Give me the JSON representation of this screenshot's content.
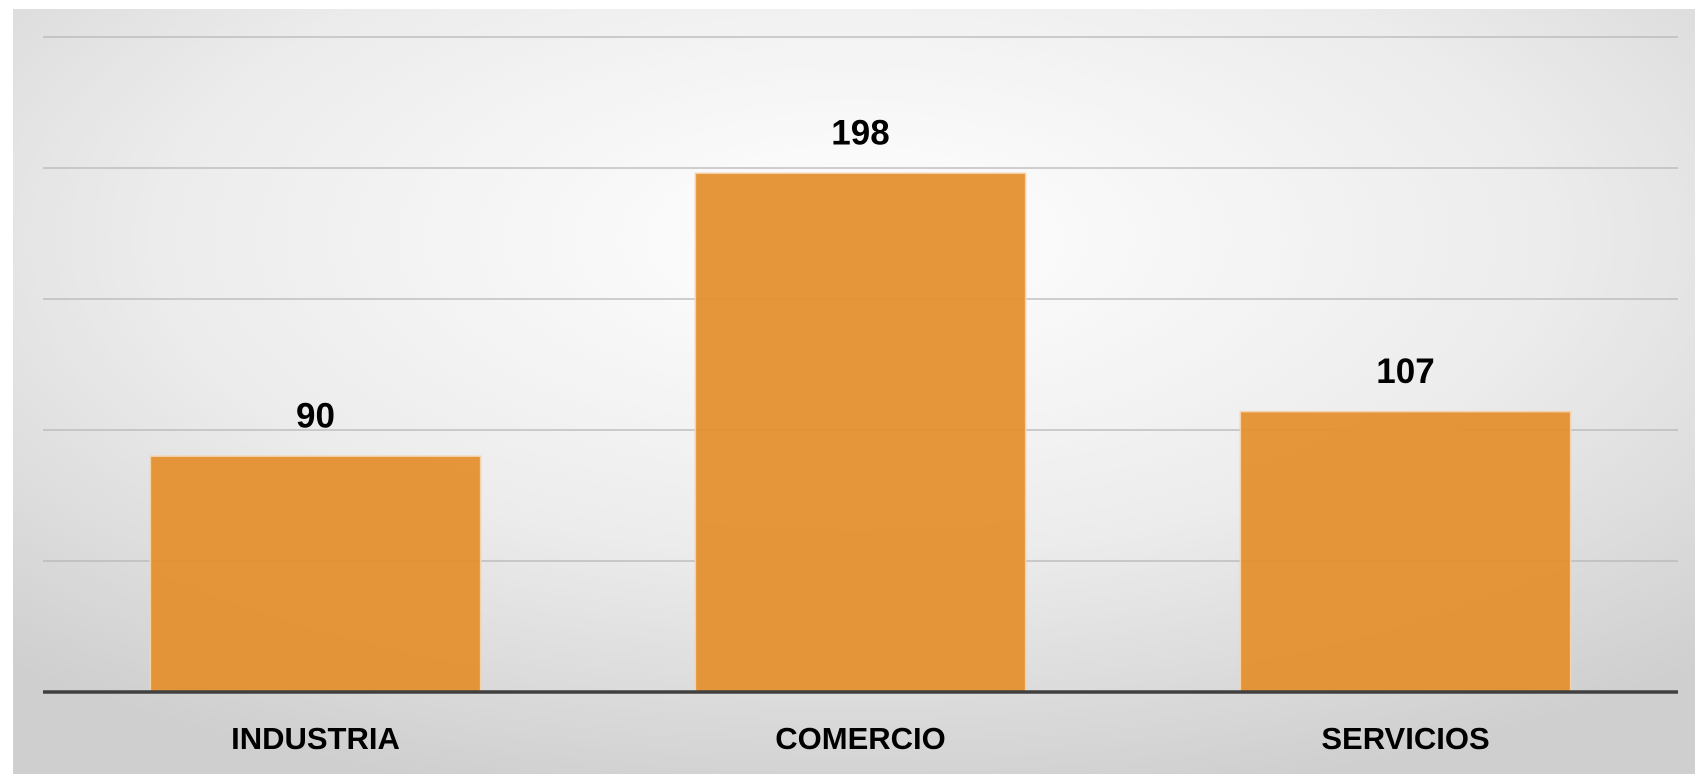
{
  "chart_data": {
    "type": "bar",
    "categories": [
      "INDUSTRIA",
      "COMERCIO",
      "SERVICIOS"
    ],
    "values": [
      90,
      198,
      107
    ],
    "color": "#e5902f",
    "ylim": [
      0,
      250
    ],
    "yticks": [
      0,
      50,
      100,
      150,
      200,
      250
    ],
    "grid": true
  }
}
